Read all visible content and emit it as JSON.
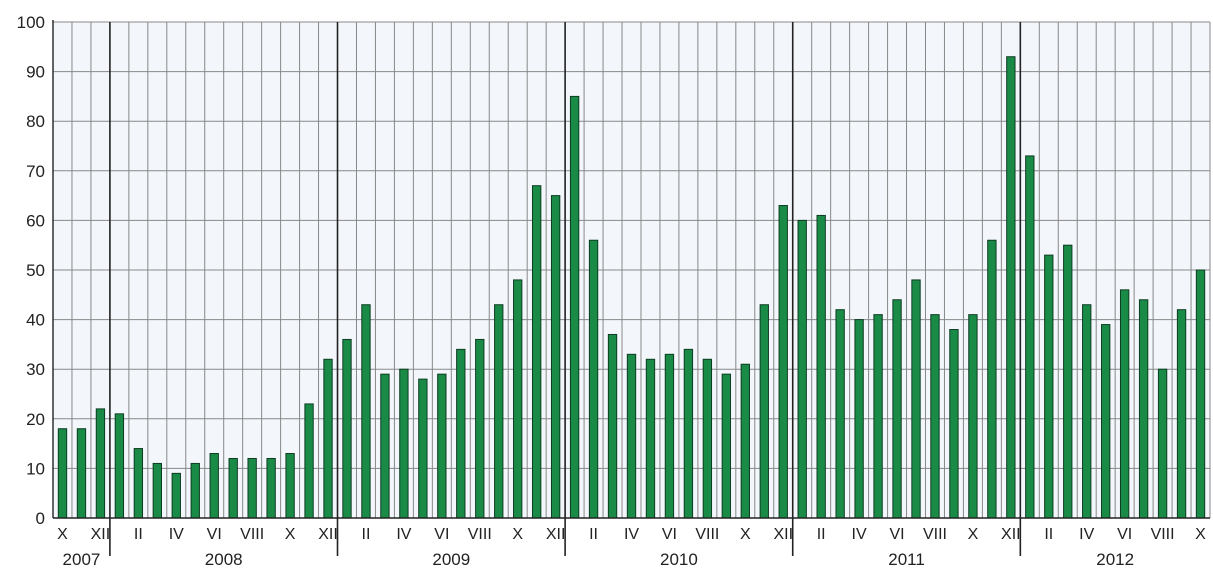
{
  "chart_data": {
    "type": "bar",
    "title": "",
    "xlabel": "",
    "ylabel": "",
    "ylim": [
      0,
      100
    ],
    "y_ticks": [
      0,
      10,
      20,
      30,
      40,
      50,
      60,
      70,
      80,
      90,
      100
    ],
    "grid": true,
    "legend": "none",
    "months": [
      "X",
      "XI",
      "XII",
      "I",
      "II",
      "III",
      "IV",
      "V",
      "VI",
      "VII",
      "VIII",
      "IX",
      "X",
      "XI",
      "XII",
      "I",
      "II",
      "III",
      "IV",
      "V",
      "VI",
      "VII",
      "VIII",
      "IX",
      "X",
      "XI",
      "XII",
      "I",
      "II",
      "III",
      "IV",
      "V",
      "VI",
      "VII",
      "VIII",
      "IX",
      "X",
      "XI",
      "XII",
      "I",
      "II",
      "III",
      "IV",
      "V",
      "VI",
      "VII",
      "VIII",
      "IX",
      "X",
      "XI",
      "XII",
      "I",
      "II",
      "III",
      "IV",
      "V",
      "VI",
      "VII",
      "VIII",
      "IX",
      "X"
    ],
    "month_labels_shown": [
      "X",
      "",
      "XII",
      "",
      "II",
      "",
      "IV",
      "",
      "VI",
      "",
      "VIII",
      "",
      "X",
      "",
      "XII",
      "",
      "II",
      "",
      "IV",
      "",
      "VI",
      "",
      "VIII",
      "",
      "X",
      "",
      "XII",
      "",
      "II",
      "",
      "IV",
      "",
      "VI",
      "",
      "VIII",
      "",
      "X",
      "",
      "XII",
      "",
      "II",
      "",
      "IV",
      "",
      "VI",
      "",
      "VIII",
      "",
      "X",
      "",
      "XII",
      "",
      "II",
      "",
      "IV",
      "",
      "VI",
      "",
      "VIII",
      "",
      "X"
    ],
    "years": [
      "2007",
      "2008",
      "2009",
      "2010",
      "2011",
      "2012"
    ],
    "year_start_index": [
      0,
      3,
      15,
      27,
      39,
      51
    ],
    "year_end_index": [
      2,
      14,
      26,
      38,
      50,
      60
    ],
    "values": [
      18,
      18,
      22,
      21,
      14,
      11,
      9,
      11,
      13,
      12,
      12,
      12,
      13,
      23,
      32,
      36,
      43,
      29,
      30,
      28,
      29,
      34,
      36,
      43,
      48,
      67,
      65,
      85,
      56,
      37,
      33,
      32,
      33,
      34,
      32,
      29,
      31,
      43,
      63,
      60,
      61,
      42,
      40,
      41,
      44,
      48,
      41,
      38,
      41,
      56,
      93,
      73,
      53,
      55,
      43,
      39,
      46,
      44,
      30,
      42,
      50
    ]
  },
  "colors": {
    "bar_fill": "#1a8a47",
    "bar_stroke": "#0d3d22",
    "plot_bg": "#f3f7fc",
    "grid": "#888888",
    "year_divider": "#222222",
    "axis": "#222222"
  }
}
